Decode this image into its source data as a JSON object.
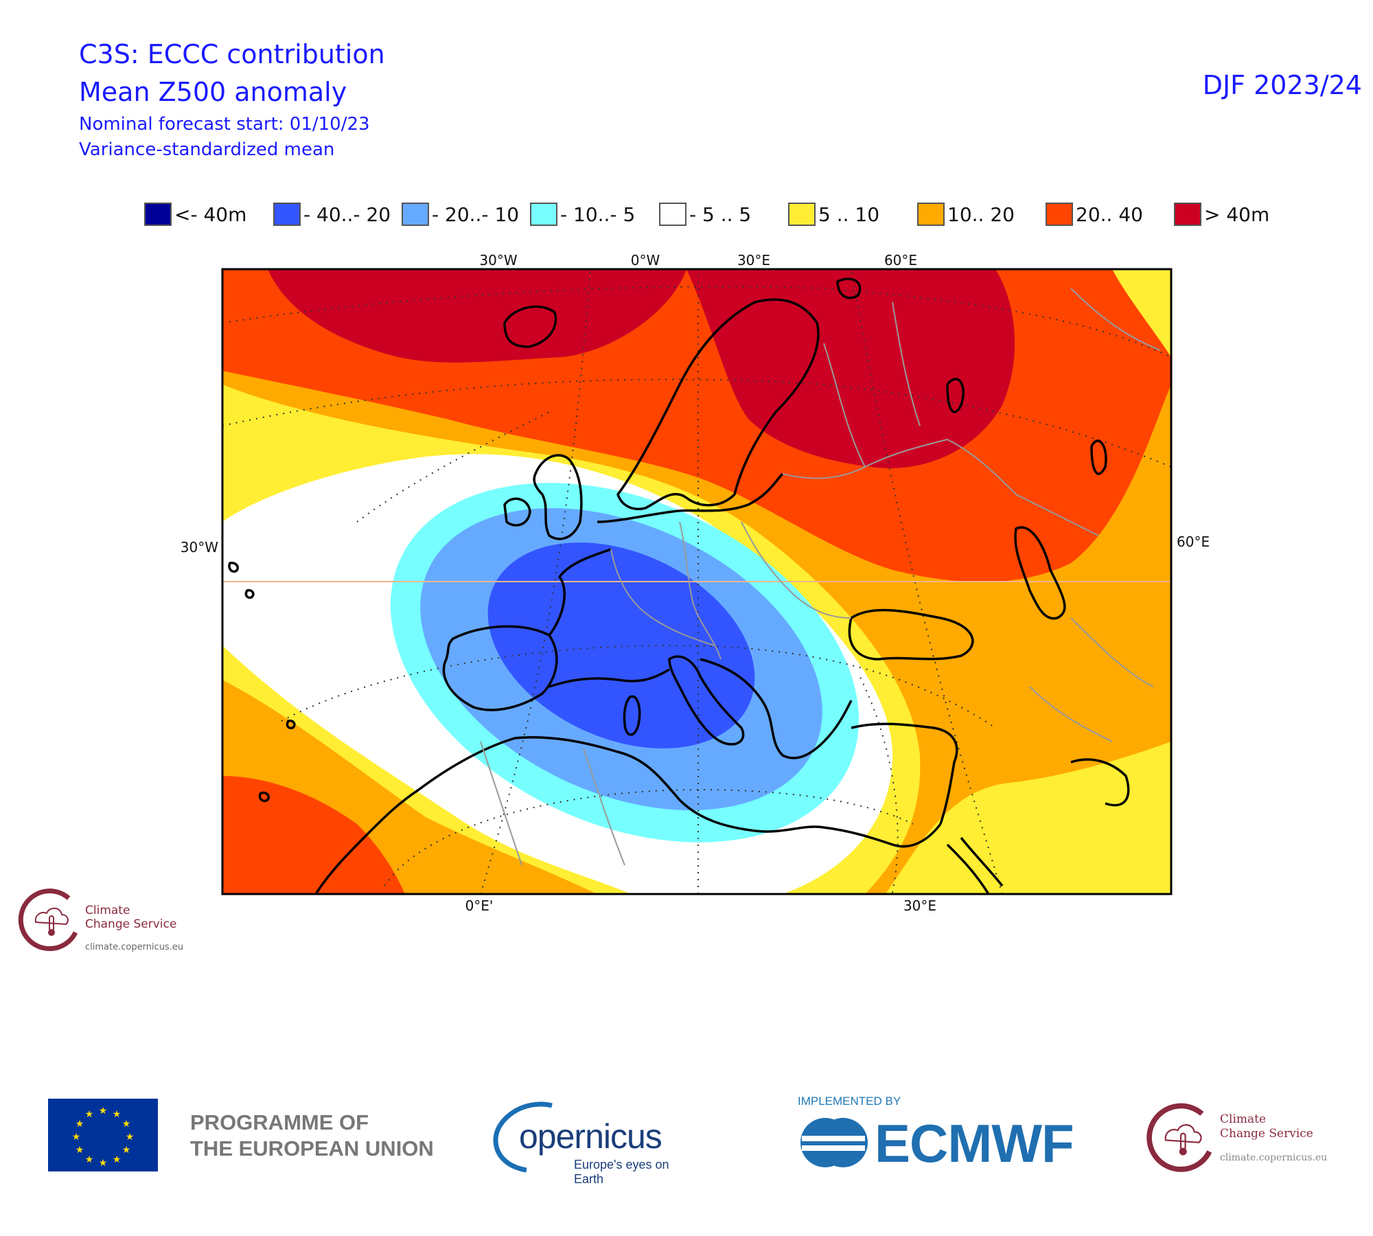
{
  "header": {
    "title_line1": "C3S: ECCC contribution",
    "title_line2": "Mean Z500 anomaly",
    "subtitle_line1": "Nominal forecast start: 01/10/23",
    "subtitle_line2": "Variance-standardized mean",
    "period": "DJF 2023/24"
  },
  "legend": [
    {
      "label": "<- 40m",
      "color": "#000099"
    },
    {
      "label": "- 40..- 20",
      "color": "#3355ff"
    },
    {
      "label": "- 20..- 10",
      "color": "#66aaff"
    },
    {
      "label": "- 10..- 5",
      "color": "#77ffff"
    },
    {
      "label": "- 5 .. 5",
      "color": "#ffffff"
    },
    {
      "label": "5 .. 10",
      "color": "#ffee33"
    },
    {
      "label": "10.. 20",
      "color": "#ffaa00"
    },
    {
      "label": "20.. 40",
      "color": "#ff4400"
    },
    {
      "label": ">  40m",
      "color": "#cc0022"
    }
  ],
  "map": {
    "ticks_top": [
      "30°W",
      "0°W",
      "30°E",
      "60°E"
    ],
    "tick_left": "30°W",
    "tick_right": "60°E",
    "ticks_bottom": [
      "0°E'",
      "30°E"
    ]
  },
  "logos": {
    "c3s_small_line1": "Climate",
    "c3s_small_line2": "Change Service",
    "c3s_small_url": "climate.copernicus.eu",
    "eu_programme_line1": "PROGRAMME OF",
    "eu_programme_line2": "THE EUROPEAN UNION",
    "copernicus_name": "opernicus",
    "copernicus_tagline": "Europe's eyes on Earth",
    "ecmwf_implemented": "IMPLEMENTED BY",
    "ecmwf_name": "ECMWF",
    "c3s_big_line1": "Climate",
    "c3s_big_line2": "Change Service",
    "c3s_big_url": "climate.copernicus.eu"
  }
}
